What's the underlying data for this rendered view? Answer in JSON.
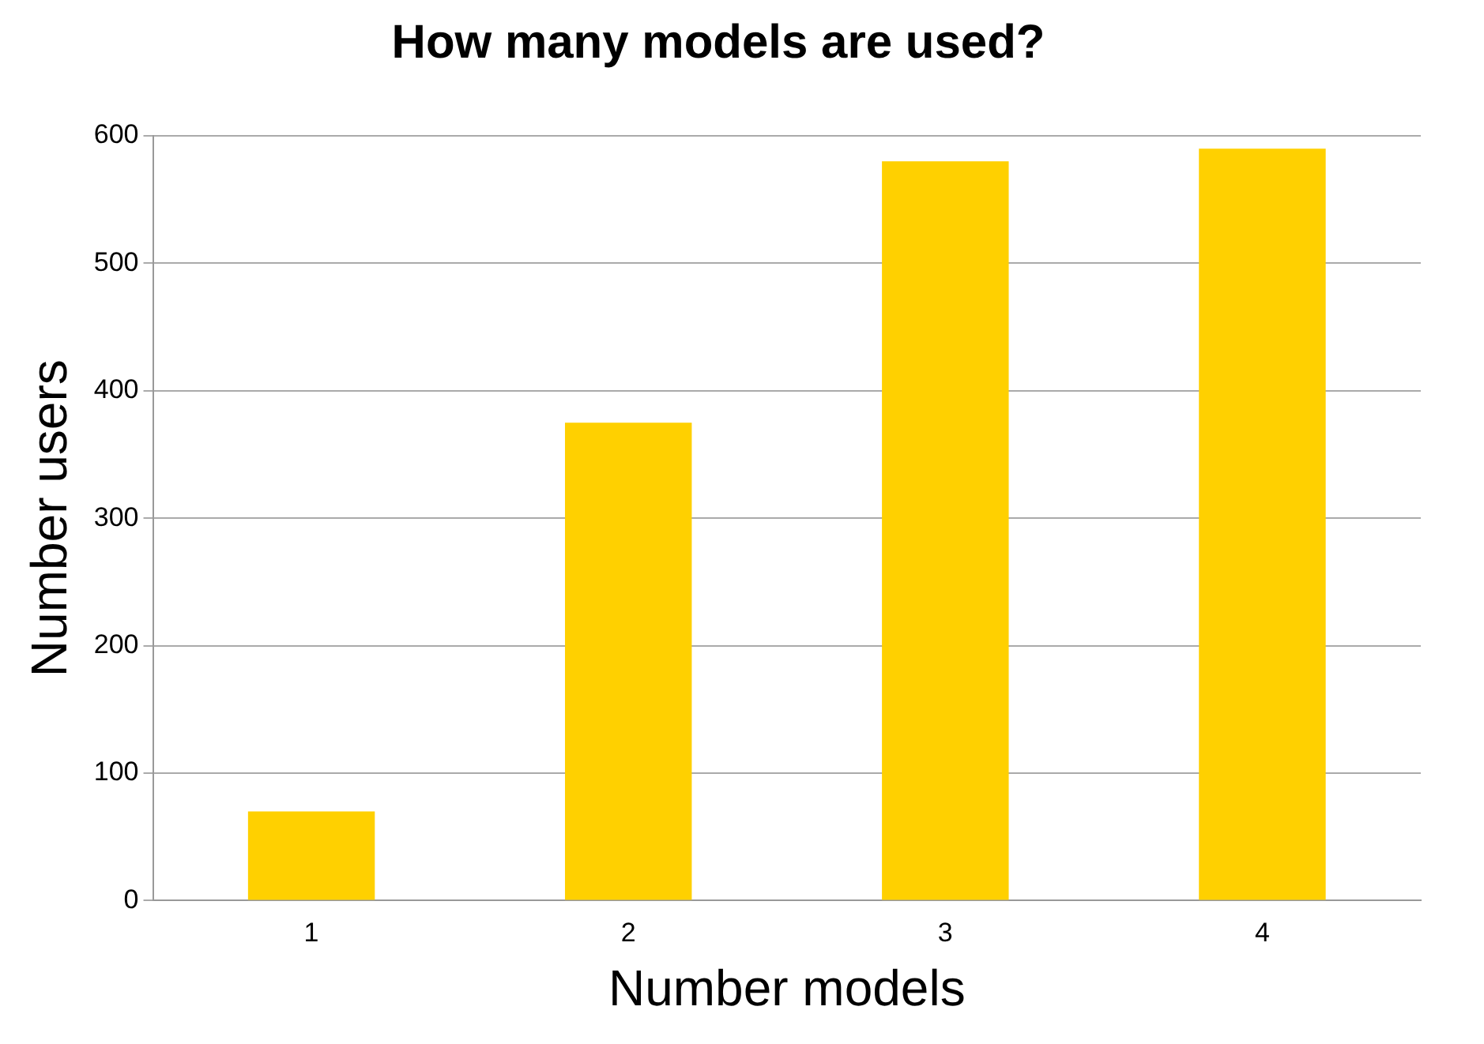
{
  "chart_data": {
    "type": "bar",
    "title": "How many models are used?",
    "xlabel": "Number models",
    "ylabel": "Number users",
    "categories": [
      "1",
      "2",
      "3",
      "4"
    ],
    "values": [
      70,
      375,
      580,
      590
    ],
    "color": "#ffd000",
    "ylim": [
      0,
      600
    ],
    "yticks": [
      0,
      100,
      200,
      300,
      400,
      500,
      600
    ],
    "grid": "y"
  }
}
